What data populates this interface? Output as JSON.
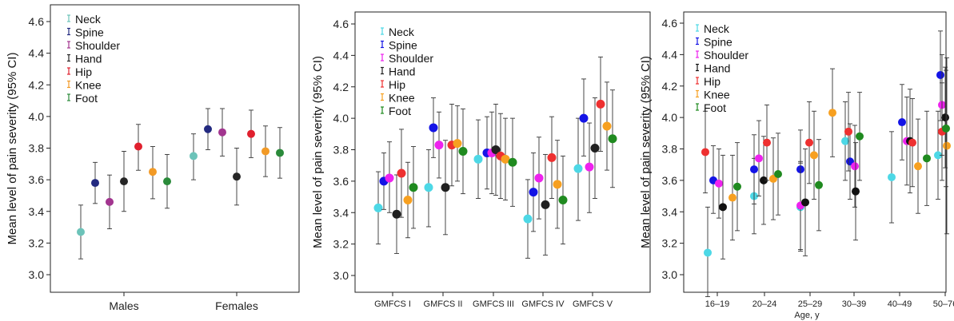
{
  "legend": [
    "Neck",
    "Spine",
    "Shoulder",
    "Hand",
    "Hip",
    "Knee",
    "Foot"
  ],
  "chart_data": [
    {
      "type": "scatter",
      "ylabel": "Mean level of pain severity (95% CI)",
      "xlabel": "",
      "ylim": [
        2.96,
        4.67
      ],
      "yticks": [
        "3.0",
        "3.2",
        "3.4",
        "3.6",
        "3.8",
        "4.0",
        "4.2",
        "4.4",
        "4.6"
      ],
      "legend": [
        "Neck",
        "Spine",
        "Shoulder",
        "Hand",
        "Hip",
        "Knee",
        "Foot"
      ],
      "colors": [
        "#6cc3b9",
        "#232a80",
        "#a2358f",
        "#262626",
        "#e0202e",
        "#f29a26",
        "#2a8a3a"
      ],
      "categories": [
        "Males",
        "Females"
      ],
      "series": [
        {
          "name": "Neck",
          "values": [
            3.27,
            3.75
          ],
          "lower": [
            3.1,
            3.6
          ],
          "upper": [
            3.44,
            3.89
          ]
        },
        {
          "name": "Spine",
          "values": [
            3.58,
            3.92
          ],
          "lower": [
            3.45,
            3.79
          ],
          "upper": [
            3.71,
            4.05
          ]
        },
        {
          "name": "Shoulder",
          "values": [
            3.46,
            3.9
          ],
          "lower": [
            3.29,
            3.75
          ],
          "upper": [
            3.63,
            4.05
          ]
        },
        {
          "name": "Hand",
          "values": [
            3.59,
            3.62
          ],
          "lower": [
            3.4,
            3.44
          ],
          "upper": [
            3.78,
            3.8
          ]
        },
        {
          "name": "Hip",
          "values": [
            3.81,
            3.89
          ],
          "lower": [
            3.66,
            3.74
          ],
          "upper": [
            3.95,
            4.04
          ]
        },
        {
          "name": "Knee",
          "values": [
            3.65,
            3.78
          ],
          "lower": [
            3.48,
            3.62
          ],
          "upper": [
            3.81,
            3.94
          ]
        },
        {
          "name": "Foot",
          "values": [
            3.59,
            3.77
          ],
          "lower": [
            3.42,
            3.61
          ],
          "upper": [
            3.76,
            3.93
          ]
        }
      ]
    },
    {
      "type": "scatter",
      "ylabel": "Mean level of pain severity (95% CI)",
      "xlabel": "",
      "ylim": [
        2.96,
        4.67
      ],
      "yticks": [
        "3.0",
        "3.2",
        "3.4",
        "3.6",
        "3.8",
        "4.0",
        "4.2",
        "4.4",
        "4.6"
      ],
      "legend": [
        "Neck",
        "Spine",
        "Shoulder",
        "Hand",
        "Hip",
        "Knee",
        "Foot"
      ],
      "colors": [
        "#4dd8e6",
        "#1414e6",
        "#ee22ee",
        "#202020",
        "#ee3030",
        "#f7a020",
        "#1f8a1f"
      ],
      "categories": [
        "GMFCS I",
        "GMFCS II",
        "GMFCS III",
        "GMFCS IV",
        "GMFCS V"
      ],
      "series": [
        {
          "name": "Neck",
          "values": [
            3.43,
            3.56,
            3.74,
            3.36,
            3.68
          ],
          "lower": [
            3.2,
            3.31,
            3.49,
            3.11,
            3.35
          ],
          "upper": [
            3.66,
            3.8,
            3.99,
            3.61,
            4.0
          ]
        },
        {
          "name": "Spine",
          "values": [
            3.6,
            3.94,
            3.78,
            3.53,
            4.0
          ],
          "lower": [
            3.42,
            3.75,
            3.55,
            3.28,
            3.76
          ],
          "upper": [
            3.78,
            4.13,
            4.01,
            3.78,
            4.25
          ]
        },
        {
          "name": "Shoulder",
          "values": [
            3.62,
            3.83,
            3.78,
            3.62,
            3.69
          ],
          "lower": [
            3.4,
            3.62,
            3.52,
            3.36,
            3.4
          ],
          "upper": [
            3.85,
            4.04,
            4.04,
            3.88,
            3.97
          ]
        },
        {
          "name": "Hand",
          "values": [
            3.39,
            3.56,
            3.8,
            3.45,
            3.81
          ],
          "lower": [
            3.14,
            3.26,
            3.51,
            3.13,
            3.49
          ],
          "upper": [
            3.64,
            3.86,
            4.09,
            3.77,
            4.13
          ]
        },
        {
          "name": "Hip",
          "values": [
            3.65,
            3.83,
            3.76,
            3.75,
            4.09
          ],
          "lower": [
            3.37,
            3.57,
            3.49,
            3.49,
            3.79
          ],
          "upper": [
            3.93,
            4.09,
            4.03,
            4.01,
            4.39
          ]
        },
        {
          "name": "Knee",
          "values": [
            3.48,
            3.84,
            3.74,
            3.58,
            3.95
          ],
          "lower": [
            3.24,
            3.6,
            3.48,
            3.3,
            3.67
          ],
          "upper": [
            3.72,
            4.08,
            4.0,
            3.86,
            4.23
          ]
        },
        {
          "name": "Foot",
          "values": [
            3.56,
            3.79,
            3.72,
            3.48,
            3.87
          ],
          "lower": [
            3.3,
            3.52,
            3.44,
            3.2,
            3.56
          ],
          "upper": [
            3.82,
            4.06,
            4.0,
            3.76,
            4.18
          ]
        }
      ]
    },
    {
      "type": "scatter",
      "ylabel": "Mean level of pain severity (95% CI)",
      "xlabel": "Age, y",
      "ylim": [
        2.96,
        4.67
      ],
      "yticks": [
        "3.0",
        "3.2",
        "3.4",
        "3.6",
        "3.8",
        "4.0",
        "4.2",
        "4.4",
        "4.6"
      ],
      "legend": [
        "Neck",
        "Spine",
        "Shoulder",
        "Hand",
        "Hip",
        "Knee",
        "Foot"
      ],
      "colors": [
        "#4dd8e6",
        "#1414e6",
        "#ee22ee",
        "#111111",
        "#ee3030",
        "#f7a020",
        "#1f8a1f"
      ],
      "categories": [
        "16–19",
        "20–24",
        "25–29",
        "30–39",
        "40–49",
        "50–76"
      ],
      "series": [
        {
          "name": "Neck",
          "values": [
            3.14,
            3.5,
            3.43,
            3.85,
            3.62,
            3.76
          ],
          "lower": [
            2.86,
            3.26,
            3.15,
            3.6,
            3.33,
            3.48
          ],
          "upper": [
            3.43,
            3.74,
            3.71,
            4.1,
            3.91,
            4.04
          ]
        },
        {
          "name": "Spine",
          "values": [
            3.6,
            3.67,
            3.67,
            3.72,
            3.97,
            4.27
          ],
          "lower": [
            3.39,
            3.45,
            3.42,
            3.48,
            3.73,
            3.98
          ],
          "upper": [
            3.82,
            3.89,
            3.92,
            3.96,
            4.21,
            4.55
          ]
        },
        {
          "name": "Shoulder",
          "values": [
            3.58,
            3.74,
            3.44,
            3.69,
            3.85,
            4.08
          ],
          "lower": [
            3.36,
            3.5,
            3.16,
            3.43,
            3.57,
            3.76
          ],
          "upper": [
            3.8,
            3.98,
            3.72,
            3.95,
            4.13,
            4.4
          ]
        },
        {
          "name": "Hand",
          "values": [
            3.43,
            3.6,
            3.46,
            3.53,
            3.85,
            4.0
          ],
          "lower": [
            3.1,
            3.32,
            3.12,
            3.22,
            3.52,
            3.68
          ],
          "upper": [
            3.76,
            3.88,
            3.8,
            3.84,
            4.18,
            4.32
          ]
        },
        {
          "name": "Hip",
          "values": [
            3.78,
            3.84,
            3.84,
            3.91,
            3.84,
            3.91
          ],
          "lower": [
            3.52,
            3.6,
            3.58,
            3.66,
            3.56,
            3.6
          ],
          "upper": [
            4.04,
            4.08,
            4.1,
            4.16,
            4.12,
            4.22
          ]
        },
        {
          "name": "Knee",
          "values": [
            3.49,
            3.61,
            3.76,
            4.03,
            3.69,
            3.82
          ],
          "lower": [
            3.22,
            3.35,
            3.48,
            3.75,
            3.39,
            3.26
          ],
          "upper": [
            3.76,
            3.87,
            4.04,
            4.31,
            3.99,
            4.38
          ]
        },
        {
          "name": "Foot",
          "values": [
            3.56,
            3.64,
            3.57,
            3.88,
            3.74,
            3.93
          ],
          "lower": [
            3.28,
            3.38,
            3.28,
            3.6,
            3.44,
            3.56
          ],
          "upper": [
            3.84,
            3.9,
            3.86,
            4.16,
            4.04,
            4.3
          ]
        }
      ]
    }
  ]
}
